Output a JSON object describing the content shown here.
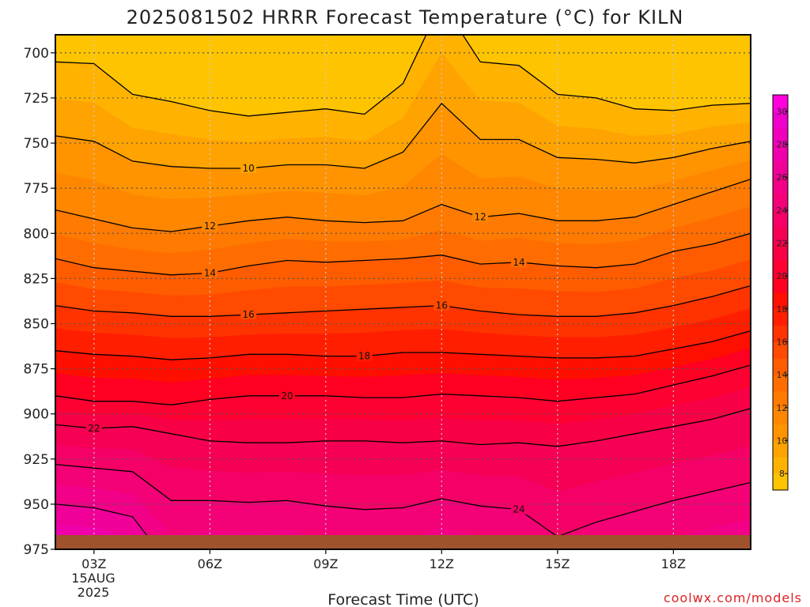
{
  "chart_data": {
    "type": "heatmap",
    "title": "2025081502 HRRR Forecast Temperature (°C) for KILN",
    "xlabel": "Forecast Time (UTC)",
    "ylabel": "",
    "x_ticks": [
      "03Z",
      "06Z",
      "09Z",
      "12Z",
      "15Z",
      "18Z"
    ],
    "x_date_label": [
      "15AUG",
      "2025"
    ],
    "x_hours": [
      2,
      3,
      4,
      5,
      6,
      7,
      8,
      9,
      10,
      11,
      12,
      13,
      14,
      15,
      16,
      17,
      18,
      19,
      20
    ],
    "y_ticks": [
      700,
      725,
      750,
      775,
      800,
      825,
      850,
      875,
      900,
      925,
      950,
      975
    ],
    "ylim": [
      975,
      690
    ],
    "xlim": [
      2,
      20
    ],
    "grid": true,
    "contour_interval": 1,
    "contour_label_interval": 2,
    "isotherms": [
      {
        "value": 10,
        "pressure": [
          746,
          749,
          760,
          763,
          764,
          764,
          762,
          762,
          764,
          755,
          728,
          748,
          748,
          758,
          759,
          761,
          758,
          753,
          749
        ]
      },
      {
        "value": 12,
        "pressure": [
          787,
          792,
          797,
          799,
          796,
          793,
          791,
          793,
          794,
          793,
          784,
          791,
          789,
          793,
          793,
          791,
          784,
          777,
          770
        ]
      },
      {
        "value": 14,
        "pressure": [
          814,
          819,
          821,
          823,
          822,
          818,
          815,
          816,
          815,
          814,
          812,
          817,
          816,
          818,
          819,
          817,
          810,
          806,
          800
        ]
      },
      {
        "value": 16,
        "pressure": [
          840,
          843,
          844,
          846,
          846,
          845,
          844,
          843,
          842,
          841,
          840,
          843,
          845,
          846,
          846,
          844,
          840,
          835,
          829
        ]
      },
      {
        "value": 18,
        "pressure": [
          865,
          867,
          868,
          870,
          869,
          867,
          867,
          868,
          868,
          866,
          866,
          867,
          868,
          869,
          869,
          868,
          864,
          860,
          854
        ]
      },
      {
        "value": 20,
        "pressure": [
          890,
          893,
          893,
          895,
          892,
          890,
          890,
          890,
          891,
          891,
          889,
          890,
          891,
          893,
          891,
          889,
          884,
          879,
          873
        ]
      },
      {
        "value": 22,
        "pressure": [
          906,
          908,
          907,
          911,
          915,
          916,
          916,
          915,
          915,
          916,
          915,
          917,
          916,
          918,
          915,
          911,
          907,
          903,
          897
        ]
      },
      {
        "value": 24,
        "pressure": [
          928,
          930,
          932,
          948,
          948,
          949,
          948,
          951,
          953,
          952,
          947,
          951,
          953,
          968,
          960,
          954,
          948,
          943,
          938
        ]
      }
    ],
    "colorbar": {
      "ticks": [
        8,
        10,
        12,
        14,
        16,
        18,
        20,
        22,
        24,
        26,
        28,
        30
      ],
      "levels": [
        7,
        8,
        9,
        10,
        11,
        12,
        13,
        14,
        15,
        16,
        17,
        18,
        19,
        20,
        21,
        22,
        23,
        24,
        25,
        26,
        27,
        28,
        29,
        30,
        31
      ],
      "colors": [
        "#ffc400",
        "#ffb300",
        "#ffa300",
        "#ff9400",
        "#ff8700",
        "#ff7a00",
        "#ff6d00",
        "#ff5c00",
        "#ff4a00",
        "#ff3300",
        "#ff1f00",
        "#ff0f00",
        "#ff0022",
        "#ff0033",
        "#f70045",
        "#f50055",
        "#f50066",
        "#f40077",
        "#f20088",
        "#f00099",
        "#f000aa",
        "#f000bb",
        "#f000cc",
        "#ff00dd"
      ]
    },
    "ground_color": "#a0522d",
    "contour_color": "#000000",
    "grid_color": "#555555"
  },
  "credit": "coolwx.com/models",
  "credit_color": "#dd2222"
}
